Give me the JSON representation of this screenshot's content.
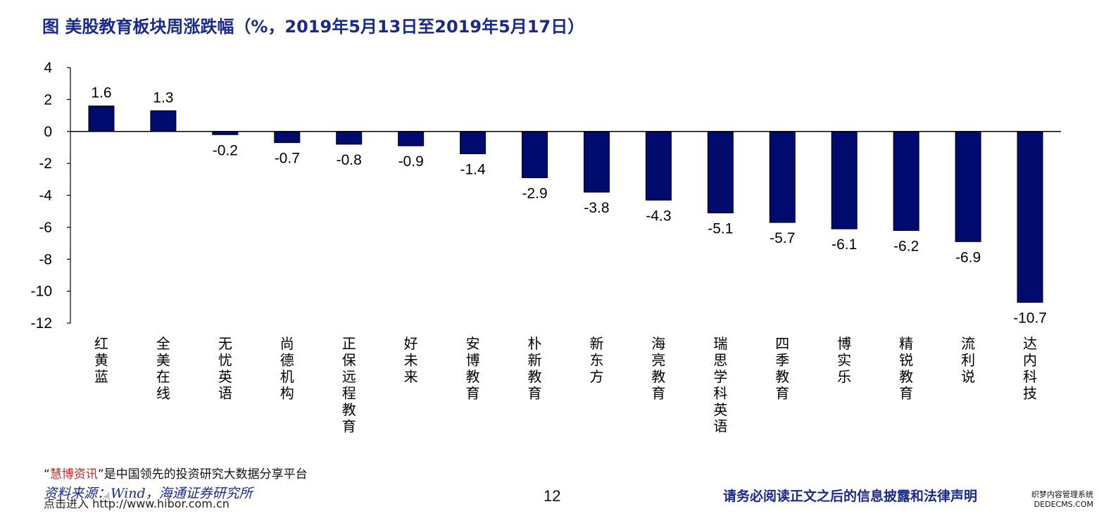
{
  "title": "图  美股教育板块周涨跌幅（%，2019年5月13日至2019年5月17日）",
  "colors": {
    "bar": "#000b6e",
    "title": "#1a2a8c",
    "brand": "#d42020"
  },
  "chart_data": {
    "type": "bar",
    "categories": [
      "红黄蓝",
      "全美在线",
      "无忧英语",
      "尚德机构",
      "正保远程教育",
      "好未来",
      "安博教育",
      "朴新教育",
      "新东方",
      "海亮教育",
      "瑞思学科英语",
      "四季教育",
      "博实乐",
      "精锐教育",
      "流利说",
      "达内科技"
    ],
    "values": [
      1.6,
      1.3,
      -0.2,
      -0.7,
      -0.8,
      -0.9,
      -1.4,
      -2.9,
      -3.8,
      -4.3,
      -5.1,
      -5.7,
      -6.1,
      -6.2,
      -6.9,
      -10.7
    ],
    "value_labels": [
      "1.6",
      "1.3",
      "-0.2",
      "-0.7",
      "-0.8",
      "-0.9",
      "-1.4",
      "-2.9",
      "-3.8",
      "-4.3",
      "-5.1",
      "-5.7",
      "-6.1",
      "-6.2",
      "-6.9",
      "-10.7"
    ],
    "yticks": [
      "4",
      "2",
      "0",
      "-2",
      "-4",
      "-6",
      "-8",
      "-10",
      "-12"
    ],
    "ytick_values": [
      4,
      2,
      0,
      -2,
      -4,
      -6,
      -8,
      -10,
      -12
    ],
    "ylim": [
      -12,
      4
    ],
    "grid": false,
    "legend": "none"
  },
  "footer": {
    "promo_quote_open": "“",
    "promo_brand": "慧博资讯",
    "promo_rest": "”是中国领先的投资研究大数据分享平台",
    "source": "资料来源：Wind，海通证券研究所",
    "link": "点击进入 http://www.hibor.com.cn",
    "hand_icon": "pointer-hand-icon",
    "page_number": "12",
    "disclaimer": "请务必阅读正文之后的信息披露和法律声明",
    "watermark_line1": "织梦内容管理系统",
    "watermark_line2": "DEDECMS.COM"
  }
}
